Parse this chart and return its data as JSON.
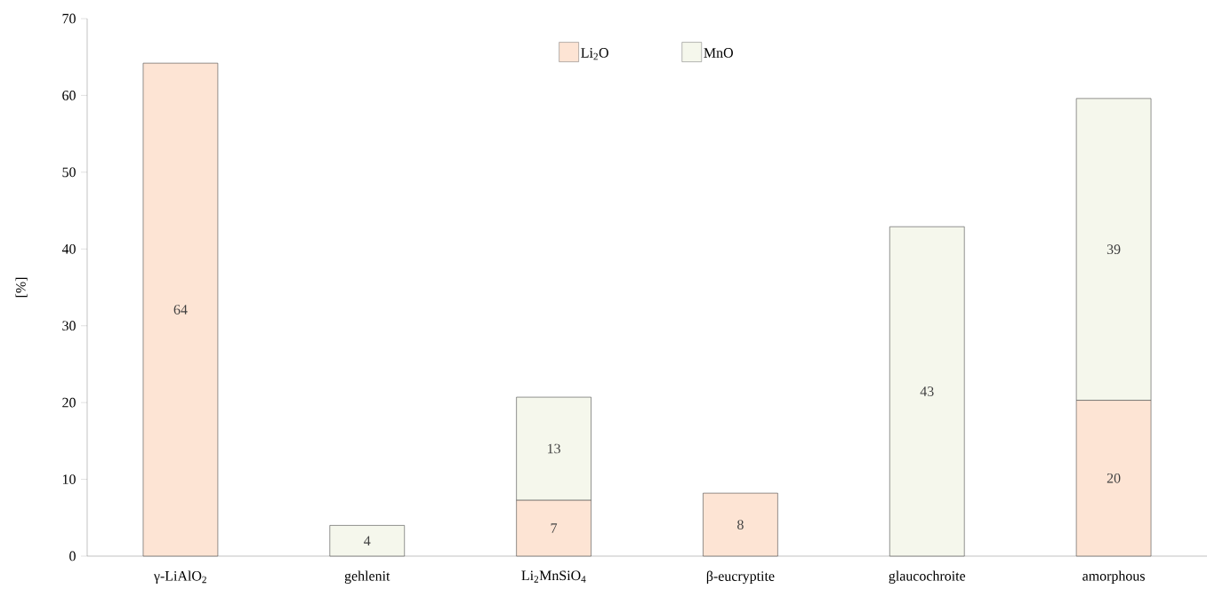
{
  "chart_data": {
    "type": "bar",
    "stacked": true,
    "ylabel": "[%]",
    "categories": [
      "γ-LiAlO$_{2}$",
      "gehlenit",
      "Li$_{2}$MnSiO$_{4}$",
      "β-eucryptite",
      "glaucochroite",
      "amorphous"
    ],
    "series": [
      {
        "name": "Li$_{2}$O",
        "color": "#fde4d4",
        "values": [
          64.2,
          null,
          7.3,
          8.2,
          null,
          20.3
        ],
        "value_labels": [
          "64",
          null,
          "7",
          "8",
          null,
          "20"
        ]
      },
      {
        "name": "MnO",
        "color": "#f5f7ec",
        "values": [
          null,
          4.0,
          13.4,
          null,
          42.9,
          39.3
        ],
        "value_labels": [
          null,
          "4",
          "13",
          null,
          "43",
          "39"
        ]
      }
    ],
    "ylim": [
      0,
      70
    ],
    "yticks": [
      0,
      10,
      20,
      30,
      40,
      50,
      60,
      70
    ],
    "legend": "top",
    "grid": false
  }
}
